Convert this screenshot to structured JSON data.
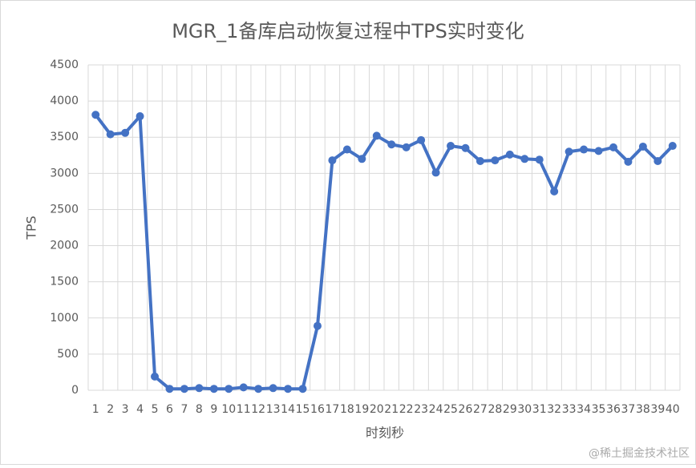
{
  "chart_data": {
    "type": "line",
    "title": "MGR_1备库启动恢复过程中TPS实时变化",
    "x_label": "时刻秒",
    "y_label": "TPS",
    "categories": [
      "1",
      "2",
      "3",
      "4",
      "5",
      "6",
      "7",
      "8",
      "9",
      "10",
      "11",
      "12",
      "13",
      "14",
      "15",
      "16",
      "17",
      "18",
      "19",
      "20",
      "21",
      "22",
      "23",
      "24",
      "25",
      "26",
      "27",
      "28",
      "29",
      "30",
      "31",
      "32",
      "33",
      "34",
      "35",
      "36",
      "37",
      "38",
      "39",
      "40"
    ],
    "series": [
      {
        "name": "TPS",
        "color": "#4472c4",
        "values": [
          3810,
          3540,
          3560,
          3790,
          190,
          20,
          20,
          30,
          20,
          20,
          40,
          20,
          30,
          20,
          20,
          890,
          3180,
          3330,
          3200,
          3520,
          3400,
          3360,
          3460,
          3010,
          3380,
          3350,
          3170,
          3180,
          3260,
          3200,
          3190,
          2750,
          3300,
          3330,
          3310,
          3360,
          3160,
          3370,
          3170,
          3380
        ]
      }
    ],
    "ylim": [
      0,
      4500
    ],
    "yticks": [
      0,
      500,
      1000,
      1500,
      2000,
      2500,
      3000,
      3500,
      4000,
      4500
    ],
    "grid": true,
    "watermark": "@稀土掘金技术社区"
  }
}
